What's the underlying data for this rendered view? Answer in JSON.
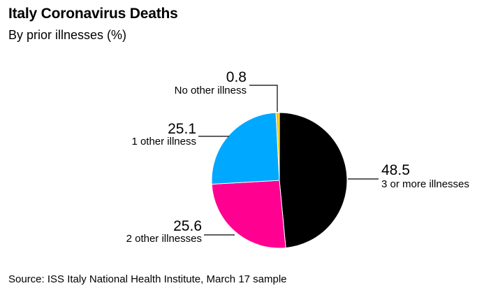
{
  "title": "Italy Coronavirus Deaths",
  "subtitle": "By prior illnesses (%)",
  "source": "Source: ISS Italy National Health Institute, March 17 sample",
  "chart_data": {
    "type": "pie",
    "slices": [
      {
        "label": "3 or more illnesses",
        "value": 48.5,
        "display": "48.5",
        "color": "#000000"
      },
      {
        "label": "2 other illnesses",
        "value": 25.6,
        "display": "25.6",
        "color": "#ff0090"
      },
      {
        "label": "1 other illness",
        "value": 25.1,
        "display": "25.1",
        "color": "#00a8ff"
      },
      {
        "label": "No other illness",
        "value": 0.8,
        "display": "0.8",
        "color": "#f5c400"
      }
    ]
  }
}
